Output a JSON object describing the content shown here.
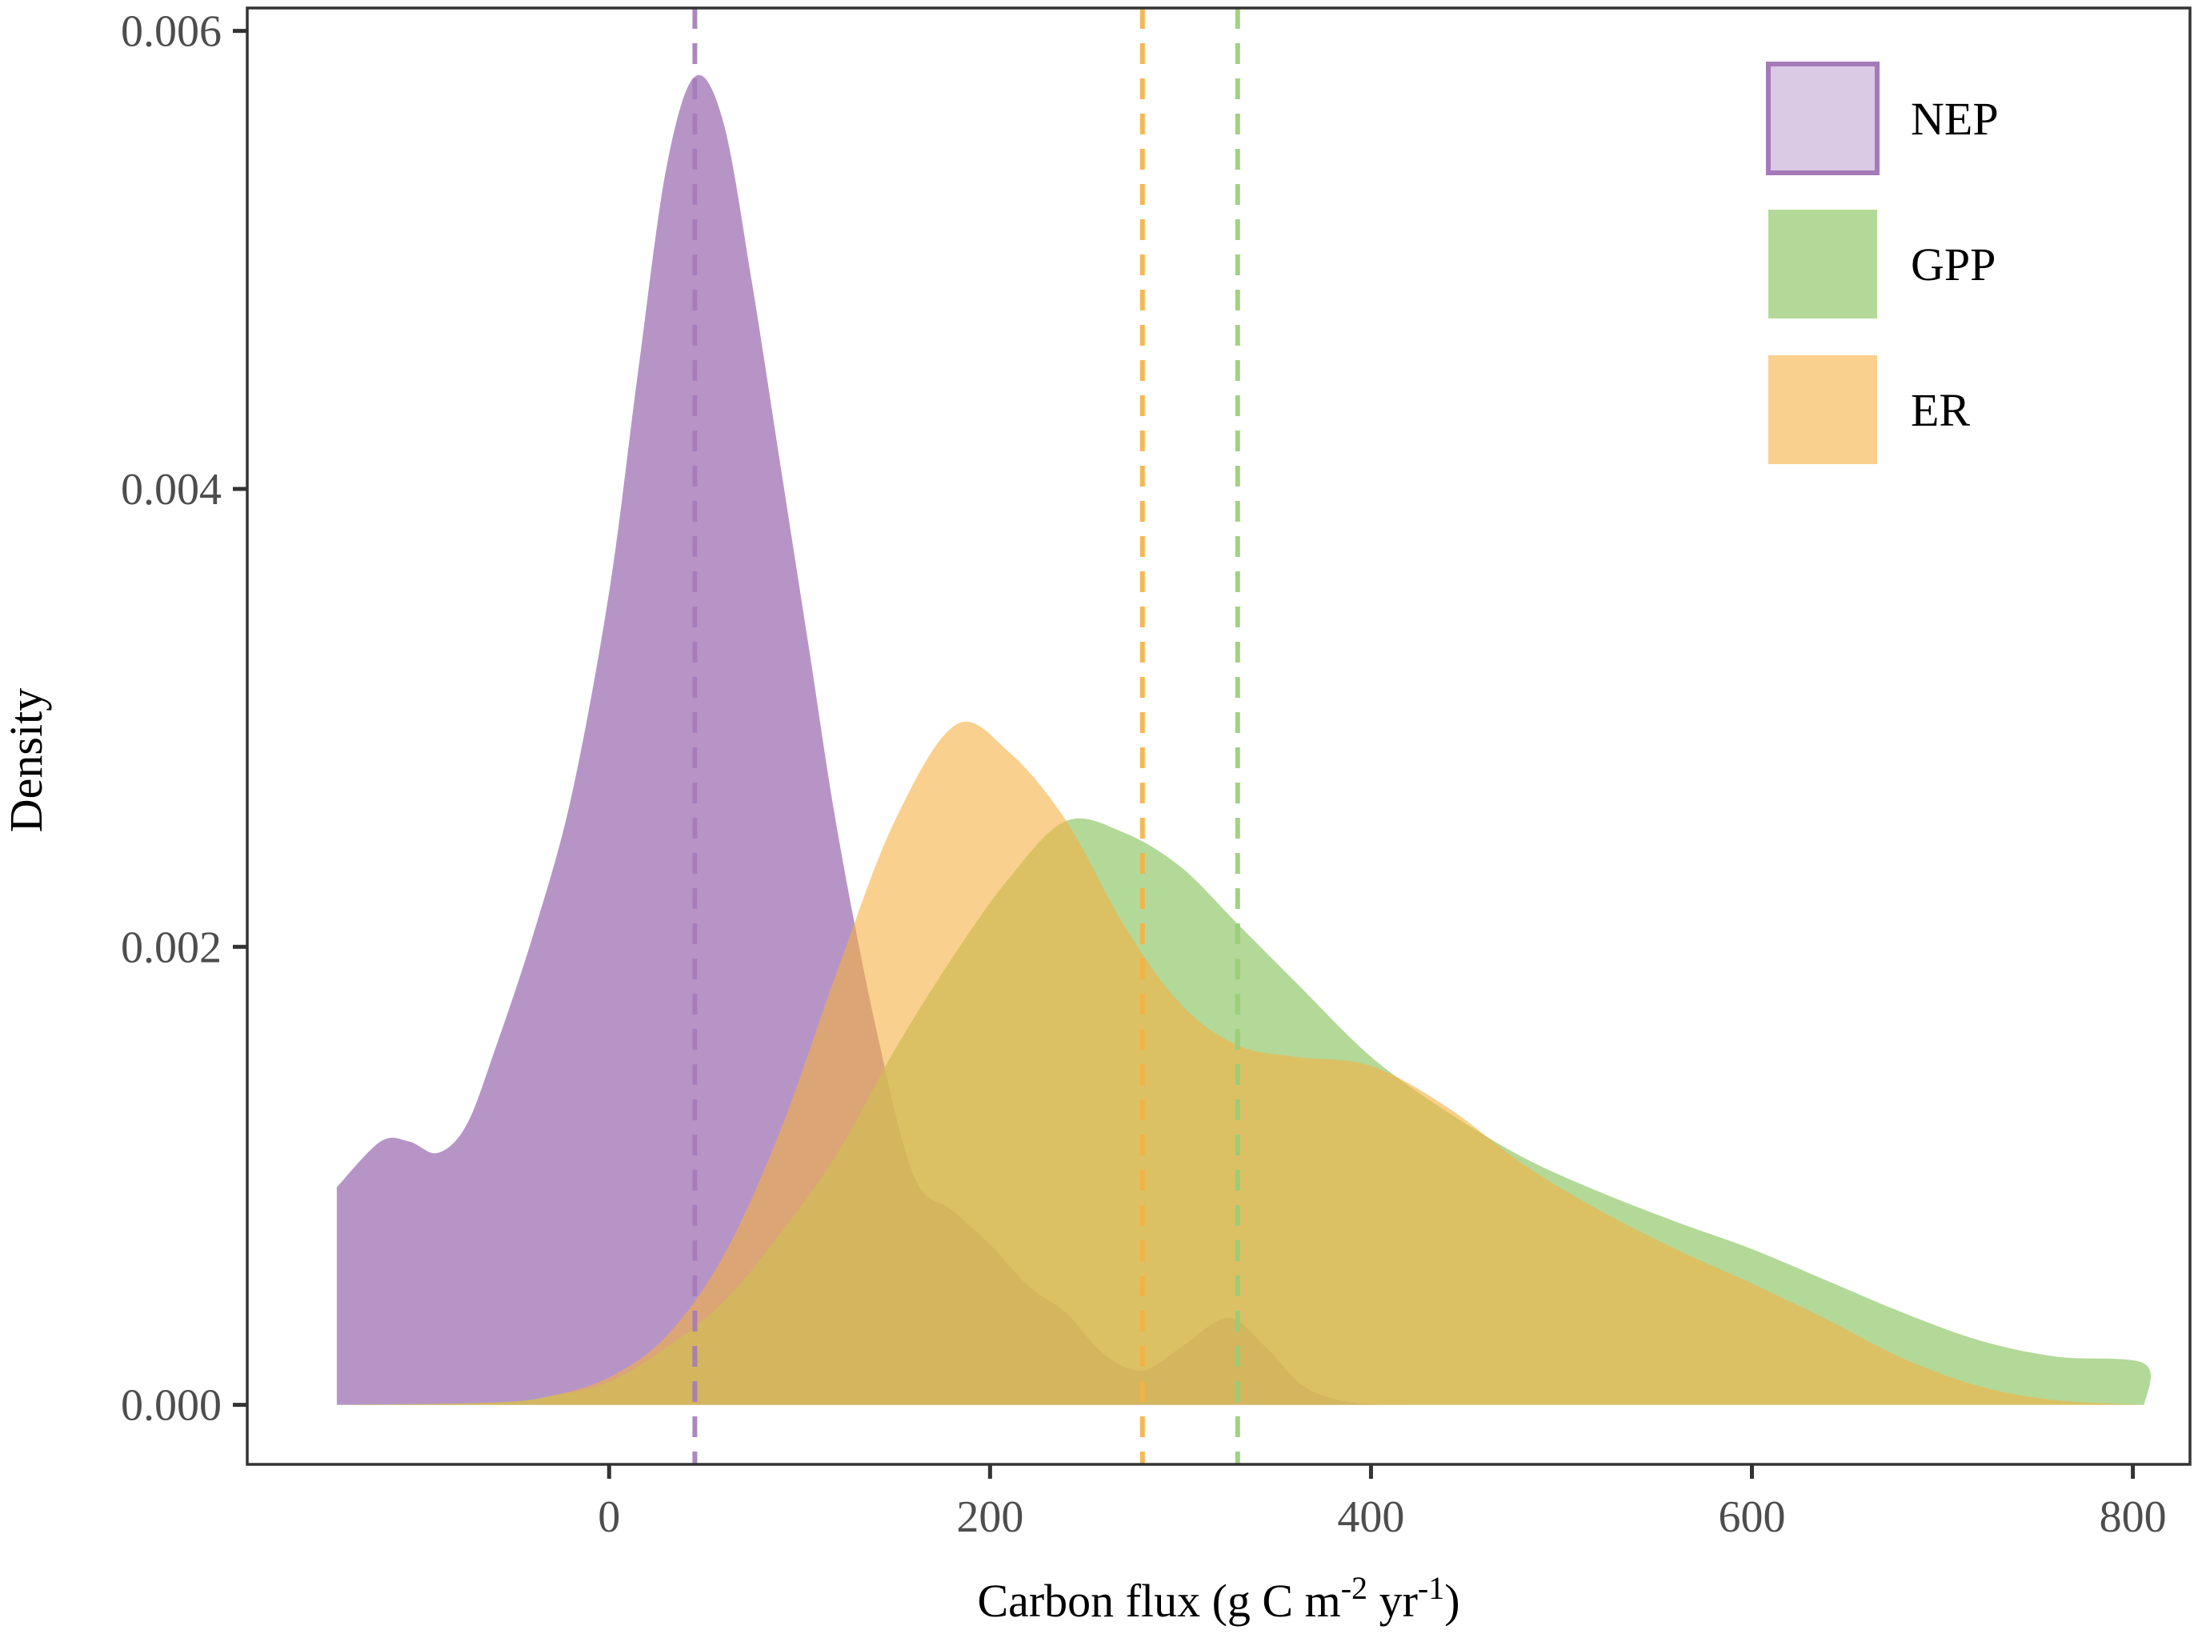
{
  "chart_data": {
    "type": "area",
    "xlabel": {
      "base": "Carbon flux (g C m",
      "sup1": "-2",
      "mid": " yr",
      "sup2": "-1",
      "end": ")"
    },
    "ylabel": "Density",
    "xlim": [
      -190,
      830
    ],
    "ylim": [
      -0.00026,
      0.0061
    ],
    "x_ticks": [
      0,
      200,
      400,
      600,
      800
    ],
    "x_tick_labels": [
      "0",
      "200",
      "400",
      "600",
      "800"
    ],
    "y_ticks": [
      0.0,
      0.002,
      0.004,
      0.006
    ],
    "y_tick_labels": [
      "0.000",
      "0.002",
      "0.004",
      "0.006"
    ],
    "grid": false,
    "legend_position": "top-right",
    "series": [
      {
        "name": "NEP",
        "color": "#a47ab8",
        "fill_opacity": 0.8,
        "mean": 45,
        "points": [
          [
            -143,
            0.00095
          ],
          [
            -120,
            0.00115
          ],
          [
            -105,
            0.00115
          ],
          [
            -90,
            0.0011
          ],
          [
            -75,
            0.00122
          ],
          [
            -60,
            0.00155
          ],
          [
            -40,
            0.00205
          ],
          [
            -20,
            0.00265
          ],
          [
            0,
            0.00355
          ],
          [
            15,
            0.0045
          ],
          [
            30,
            0.0054
          ],
          [
            45,
            0.0058
          ],
          [
            60,
            0.0056
          ],
          [
            75,
            0.0049
          ],
          [
            90,
            0.0041
          ],
          [
            105,
            0.0033
          ],
          [
            120,
            0.0025
          ],
          [
            140,
            0.00165
          ],
          [
            160,
            0.001
          ],
          [
            180,
            0.00085
          ],
          [
            200,
            0.0007
          ],
          [
            220,
            0.00052
          ],
          [
            240,
            0.0004
          ],
          [
            260,
            0.00022
          ],
          [
            280,
            0.00015
          ],
          [
            300,
            0.00025
          ],
          [
            325,
            0.00038
          ],
          [
            345,
            0.00025
          ],
          [
            365,
            8e-05
          ],
          [
            390,
            1e-05
          ],
          [
            420,
            0.0
          ]
        ]
      },
      {
        "name": "GPP",
        "color": "#99cc77",
        "fill_opacity": 0.75,
        "mean": 330,
        "points": [
          [
            -143,
            0.0
          ],
          [
            -60,
            1e-05
          ],
          [
            -30,
            4e-05
          ],
          [
            0,
            0.0001
          ],
          [
            30,
            0.00025
          ],
          [
            60,
            0.00045
          ],
          [
            90,
            0.00075
          ],
          [
            120,
            0.0011
          ],
          [
            150,
            0.00155
          ],
          [
            180,
            0.00195
          ],
          [
            210,
            0.0023
          ],
          [
            240,
            0.00255
          ],
          [
            270,
            0.0025
          ],
          [
            300,
            0.00235
          ],
          [
            330,
            0.0021
          ],
          [
            360,
            0.00185
          ],
          [
            400,
            0.00152
          ],
          [
            440,
            0.00128
          ],
          [
            480,
            0.00108
          ],
          [
            520,
            0.00093
          ],
          [
            560,
            0.0008
          ],
          [
            600,
            0.00068
          ],
          [
            640,
            0.00054
          ],
          [
            680,
            0.0004
          ],
          [
            720,
            0.00028
          ],
          [
            760,
            0.00021
          ],
          [
            806,
            0.00018
          ],
          [
            806,
            0.0
          ]
        ]
      },
      {
        "name": "ER",
        "color": "#f5b041",
        "fill_opacity": 0.6,
        "mean": 280,
        "points": [
          [
            -143,
            0.0
          ],
          [
            -60,
            1e-05
          ],
          [
            -30,
            4e-05
          ],
          [
            0,
            0.00012
          ],
          [
            30,
            0.0003
          ],
          [
            60,
            0.00065
          ],
          [
            90,
            0.0012
          ],
          [
            120,
            0.0019
          ],
          [
            150,
            0.00255
          ],
          [
            182,
            0.00297
          ],
          [
            210,
            0.00285
          ],
          [
            240,
            0.00255
          ],
          [
            270,
            0.0021
          ],
          [
            300,
            0.00175
          ],
          [
            330,
            0.00157
          ],
          [
            360,
            0.00152
          ],
          [
            400,
            0.00148
          ],
          [
            440,
            0.0013
          ],
          [
            480,
            0.00105
          ],
          [
            520,
            0.00085
          ],
          [
            560,
            0.00068
          ],
          [
            600,
            0.00053
          ],
          [
            640,
            0.00037
          ],
          [
            680,
            0.0002
          ],
          [
            720,
            8e-05
          ],
          [
            760,
            2e-05
          ],
          [
            806,
            0.0
          ]
        ]
      }
    ]
  }
}
